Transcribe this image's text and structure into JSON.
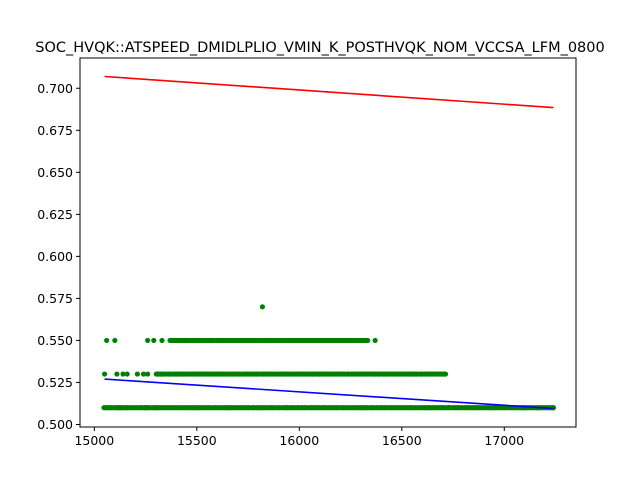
{
  "chart_data": {
    "type": "scatter",
    "title": "SOC_HVQK::ATSPEED_DMIDLPLIO_VMIN_K_POSTHVQK_NOM_VCCSA_LFM_0800",
    "xlabel": "",
    "ylabel": "",
    "xlim": [
      14930,
      17350
    ],
    "ylim": [
      0.4985,
      0.718
    ],
    "xticks": [
      15000,
      15500,
      16000,
      16500,
      17000
    ],
    "xtick_labels": [
      "15000",
      "15500",
      "16000",
      "16500",
      "17000"
    ],
    "yticks": [
      0.5,
      0.525,
      0.55,
      0.575,
      0.6,
      0.625,
      0.65,
      0.675,
      0.7
    ],
    "ytick_labels": [
      "0.500",
      "0.525",
      "0.550",
      "0.575",
      "0.600",
      "0.625",
      "0.650",
      "0.675",
      "0.700"
    ],
    "grid": false,
    "series": [
      {
        "kind": "points",
        "color": "#008000",
        "bands": [
          {
            "y": 0.51,
            "x_min": 15050,
            "x_max": 17240,
            "extra_x": [
              15050,
              15060,
              15120,
              15130,
              15160,
              15250,
              15260,
              15300,
              17100,
              17160,
              17240
            ]
          },
          {
            "y": 0.53,
            "x_min": 15300,
            "x_max": 16720,
            "extra_x": [
              15050,
              15110,
              15140,
              15160,
              15210,
              15240,
              15260
            ]
          },
          {
            "y": 0.55,
            "x_min": 15370,
            "x_max": 16340,
            "extra_x": [
              15060,
              15100,
              15260,
              15290,
              15330,
              16370
            ]
          }
        ],
        "outliers": [
          {
            "x": 15820,
            "y": 0.57
          }
        ]
      },
      {
        "kind": "line",
        "color": "#ff0000",
        "points": [
          {
            "x": 15050,
            "y": 0.707
          },
          {
            "x": 17240,
            "y": 0.6885
          }
        ]
      },
      {
        "kind": "line",
        "color": "#0000ff",
        "points": [
          {
            "x": 15050,
            "y": 0.527
          },
          {
            "x": 17240,
            "y": 0.5095
          }
        ]
      }
    ]
  }
}
